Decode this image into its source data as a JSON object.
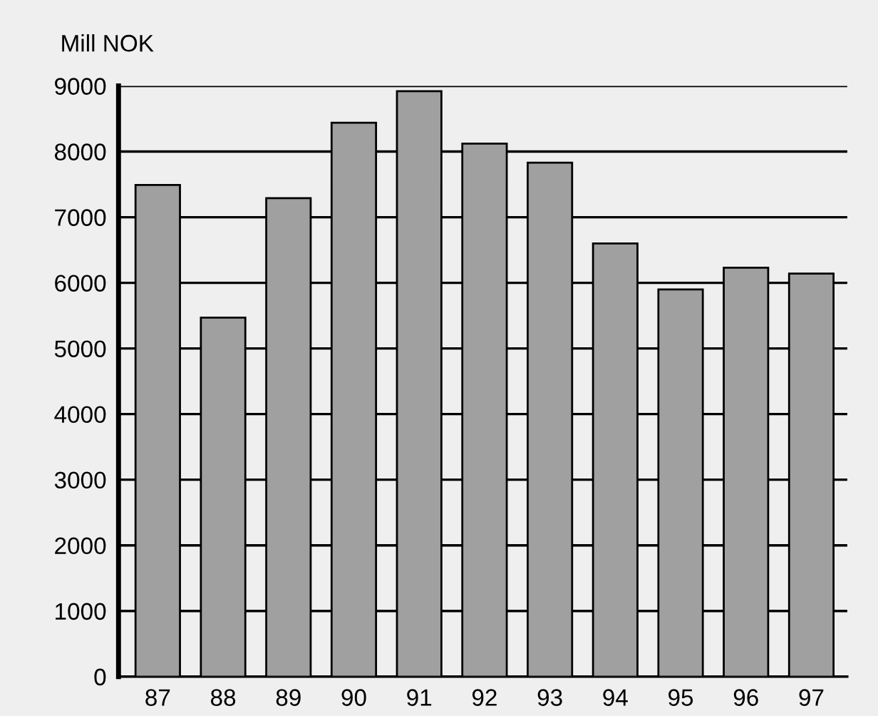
{
  "chart_data": {
    "type": "bar",
    "ylabel": "Mill NOK",
    "categories": [
      "87",
      "88",
      "89",
      "90",
      "91",
      "92",
      "93",
      "94",
      "95",
      "96",
      "97"
    ],
    "values": [
      7490,
      5470,
      7290,
      8440,
      8920,
      8120,
      7830,
      6600,
      5900,
      6230,
      6140
    ],
    "color": "#a0a0a0",
    "ylim": [
      0,
      9000
    ],
    "yticks": [
      0,
      1000,
      2000,
      3000,
      4000,
      5000,
      6000,
      7000,
      8000,
      9000
    ],
    "grid": "y"
  }
}
